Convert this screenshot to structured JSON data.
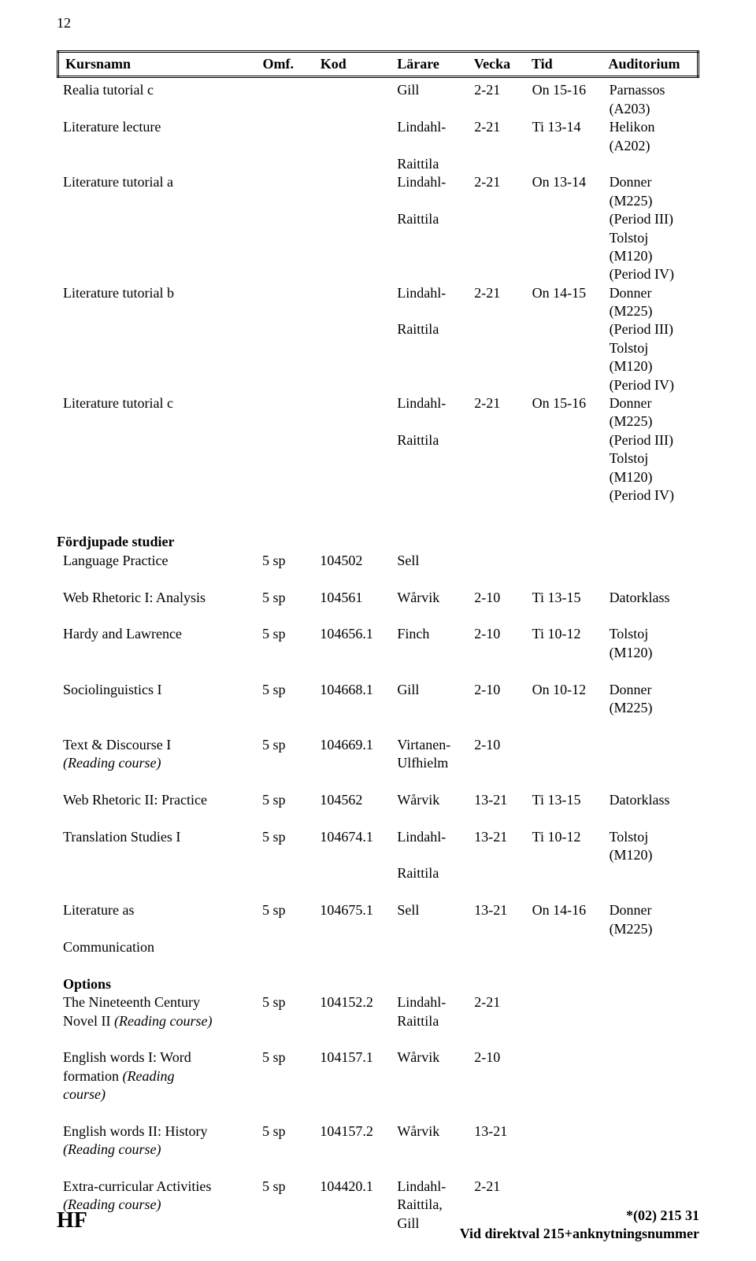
{
  "pageNumber": "12",
  "headers": {
    "kursnamn": "Kursnamn",
    "omf": "Omf.",
    "kod": "Kod",
    "larare": "Lärare",
    "vecka": "Vecka",
    "tid": "Tid",
    "auditorium": "Auditorium"
  },
  "topBlock": [
    {
      "kurs": "Realia tutorial c",
      "larare": "Gill",
      "vecka": "2-21",
      "tid": "On 15-16",
      "aud": "Parnassos (A203)"
    },
    {
      "kurs": "Literature lecture",
      "larare": "Lindahl-",
      "vecka": "2-21",
      "tid": "Ti 13-14",
      "aud": "Helikon (A202)"
    },
    {
      "larare": "Raittila"
    },
    {
      "kurs": "Literature tutorial a",
      "larare": "Lindahl-",
      "vecka": "2-21",
      "tid": "On 13-14",
      "aud": "Donner (M225)"
    },
    {
      "larare": "Raittila",
      "aud": "(Period III)"
    },
    {
      "aud": "Tolstoj (M120)"
    },
    {
      "aud": "(Period IV)"
    },
    {
      "kurs": "Literature tutorial b",
      "larare": "Lindahl-",
      "vecka": "2-21",
      "tid": "On 14-15",
      "aud": "Donner (M225)"
    },
    {
      "larare": "Raittila",
      "aud": "(Period III)"
    },
    {
      "aud": "Tolstoj (M120)"
    },
    {
      "aud": "(Period IV)"
    },
    {
      "kurs": "Literature tutorial c",
      "larare": "Lindahl-",
      "vecka": "2-21",
      "tid": "On 15-16",
      "aud": "Donner (M225)"
    },
    {
      "larare": "Raittila",
      "aud": "(Period III)"
    },
    {
      "aud": "Tolstoj (M120)"
    },
    {
      "aud": "(Period IV)"
    }
  ],
  "sectionTitle": "Fördjupade studier",
  "mainBlock": [
    {
      "kurs": "Language Practice",
      "omf": "5 sp",
      "kod": "104502",
      "larare": "Sell"
    },
    {
      "gap": true
    },
    {
      "kurs": "Web Rhetoric I: Analysis",
      "omf": "5 sp",
      "kod": "104561",
      "larare": "Wårvik",
      "vecka": "2-10",
      "tid": "Ti 13-15",
      "aud": "Datorklass"
    },
    {
      "gap": true
    },
    {
      "kurs": "Hardy and Lawrence",
      "omf": "5 sp",
      "kod": "104656.1",
      "larare": "Finch",
      "vecka": "2-10",
      "tid": "Ti 10-12",
      "aud": "Tolstoj (M120)"
    },
    {
      "gap": true
    },
    {
      "kurs": "Sociolinguistics I",
      "omf": "5 sp",
      "kod": "104668.1",
      "larare": "Gill",
      "vecka": "2-10",
      "tid": "On 10-12",
      "aud": "Donner (M225)"
    },
    {
      "gap": true
    },
    {
      "kurs": "Text & Discourse I",
      "omf": "5 sp",
      "kod": "104669.1",
      "larare": "Virtanen-",
      "vecka": "2-10"
    },
    {
      "kurs": "(Reading course)",
      "larare": "Ulfhielm",
      "italicKurs": true
    },
    {
      "gap": true
    },
    {
      "kurs": "Web Rhetoric II: Practice",
      "omf": "5 sp",
      "kod": "104562",
      "larare": "Wårvik",
      "vecka": "13-21",
      "tid": "Ti 13-15",
      "aud": "Datorklass"
    },
    {
      "gap": true
    },
    {
      "kurs": "Translation Studies I",
      "omf": "5 sp",
      "kod": "104674.1",
      "larare": "Lindahl-",
      "vecka": "13-21",
      "tid": "Ti 10-12",
      "aud": "Tolstoj (M120)"
    },
    {
      "larare": "Raittila"
    },
    {
      "gap": true
    },
    {
      "kurs": "Literature as",
      "omf": "5 sp",
      "kod": "104675.1",
      "larare": "Sell",
      "vecka": "13-21",
      "tid": "On 14-16",
      "aud": "Donner (M225)"
    },
    {
      "kurs": "Communication"
    },
    {
      "gap": true
    },
    {
      "kurs": "Options",
      "bold": true
    },
    {
      "kurs": "The Nineteenth Century",
      "omf": "5 sp",
      "kod": "104152.2",
      "larare": "Lindahl-",
      "vecka": "2-21"
    },
    {
      "kurs": "Novel II (Reading course)",
      "larare": "Raittila",
      "italicPart": "(Reading course)",
      "plainPart": "Novel II "
    },
    {
      "gap": true
    },
    {
      "kurs": "English words I: Word",
      "omf": "5 sp",
      "kod": "104157.1",
      "larare": "Wårvik",
      "vecka": "2-10"
    },
    {
      "kurs": "formation (Reading",
      "italicPart": "(Reading",
      "plainPart": "formation "
    },
    {
      "kurs": "course)",
      "italicKurs": true
    },
    {
      "gap": true
    },
    {
      "kurs": "English words II: History",
      "omf": "5 sp",
      "kod": "104157.2",
      "larare": "Wårvik",
      "vecka": "13-21"
    },
    {
      "kurs": "(Reading course)",
      "italicKurs": true
    },
    {
      "gap": true
    },
    {
      "kurs": "Extra-curricular Activities",
      "omf": "5 sp",
      "kod": "104420.1",
      "larare": "Lindahl-",
      "vecka": "2-21"
    },
    {
      "kurs": "(Reading course)",
      "larare": "Raittila, Gill",
      "italicKurs": true
    }
  ],
  "footer": {
    "left": "HF",
    "rightLine1": "*(02) 215 31",
    "rightLine2": "Vid direktval 215+anknytningsnummer"
  }
}
